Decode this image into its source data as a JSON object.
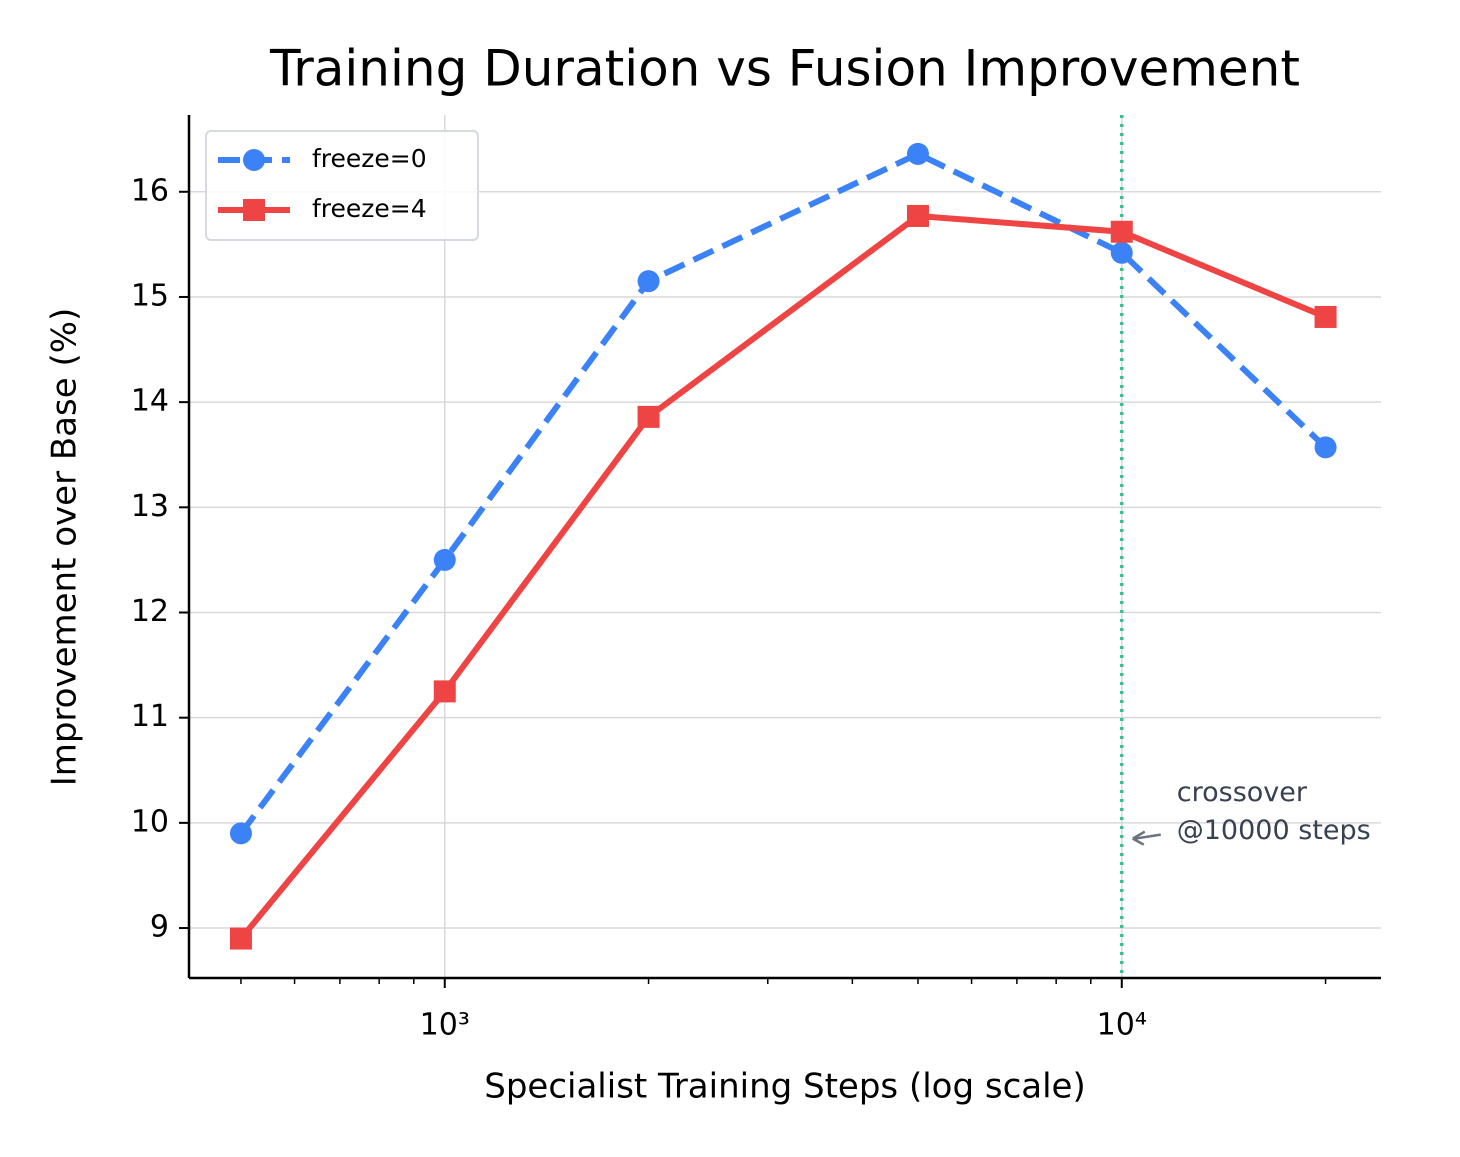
{
  "chart_data": {
    "type": "line",
    "title": "Training Duration vs Fusion Improvement",
    "x_label": "Specialist Training Steps (log scale)",
    "y_label": "Improvement over Base (%)",
    "x": [
      500,
      1000,
      2000,
      5000,
      10000,
      20000
    ],
    "series": [
      {
        "name": "freeze=0",
        "color": "#3b82f6",
        "marker": "circle",
        "linestyle": "dashed",
        "values": [
          9.9,
          12.5,
          15.15,
          16.36,
          15.42,
          13.57
        ]
      },
      {
        "name": "freeze=4",
        "color": "#ef4444",
        "marker": "square",
        "linestyle": "solid",
        "values": [
          8.9,
          11.25,
          13.86,
          15.77,
          15.62,
          14.81
        ]
      }
    ],
    "xscale": "log",
    "xlim": [
      419,
      24150
    ],
    "ylim": [
      8.525,
      16.73
    ],
    "xticks": [
      {
        "value": 1000,
        "label": "10³"
      },
      {
        "value": 10000,
        "label": "10⁴"
      }
    ],
    "xminor_ticks": [
      500,
      600,
      700,
      800,
      900,
      2000,
      3000,
      4000,
      5000,
      6000,
      7000,
      8000,
      9000,
      20000
    ],
    "yticks": [
      9,
      10,
      11,
      12,
      13,
      14,
      15,
      16
    ],
    "grid": true,
    "legend": "upper left",
    "vline": {
      "x": 10000,
      "color": "#34c38f"
    },
    "annotation": {
      "lines": [
        "crossover",
        "@10000 steps"
      ],
      "y": 9.85
    }
  }
}
